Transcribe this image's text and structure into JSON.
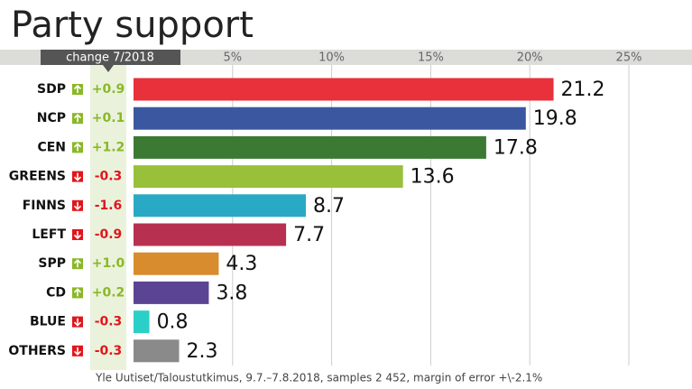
{
  "chart_data": {
    "type": "bar",
    "orientation": "horizontal",
    "title": "Party support",
    "categories": [
      "SDP",
      "NCP",
      "CEN",
      "GREENS",
      "FINNS",
      "LEFT",
      "SPP",
      "CD",
      "BLUE",
      "OTHERS"
    ],
    "values": [
      21.2,
      19.8,
      17.8,
      13.6,
      8.7,
      7.7,
      4.3,
      3.8,
      0.8,
      2.3
    ],
    "colors": [
      "#e8313a",
      "#3a57a0",
      "#3c7a34",
      "#98c03a",
      "#2aa9c4",
      "#b83050",
      "#d88c2e",
      "#5b4493",
      "#2ad0c8",
      "#8a8a8a"
    ],
    "change": {
      "label": "change 7/2018",
      "values": [
        0.9,
        0.1,
        1.2,
        -0.3,
        -1.6,
        -0.9,
        1.0,
        0.2,
        -0.3,
        -0.3
      ],
      "value_labels": [
        "+0.9",
        "+0.1",
        "+1.2",
        "-0.3",
        "-1.6",
        "-0.9",
        "+1.0",
        "+0.2",
        "-0.3",
        "-0.3"
      ]
    },
    "xlim": [
      0,
      25
    ],
    "xticks": [
      {
        "value": 5,
        "label": "5%"
      },
      {
        "value": 10,
        "label": "10%"
      },
      {
        "value": 15,
        "label": "15%"
      },
      {
        "value": 20,
        "label": "20%"
      },
      {
        "value": 25,
        "label": "25%"
      }
    ],
    "grid": true,
    "source": "Yle Uutiset/Taloustutkimus, 9.7.–7.8.2018, samples 2 452, margin of error +\\-2.1%"
  }
}
